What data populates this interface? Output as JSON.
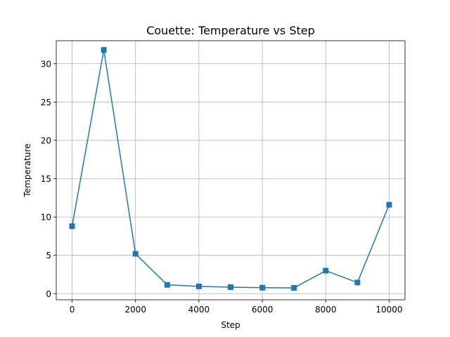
{
  "chart_data": {
    "type": "line",
    "title": "Couette: Temperature vs Step",
    "xlabel": "Step",
    "ylabel": "Temperature",
    "xlim": [
      -500,
      10500
    ],
    "ylim": [
      -0.8,
      33.0
    ],
    "xticks": [
      0,
      2000,
      4000,
      6000,
      8000,
      10000
    ],
    "xtick_labels": [
      "0",
      "2000",
      "4000",
      "6000",
      "8000",
      "10000"
    ],
    "yticks": [
      0,
      5,
      10,
      15,
      20,
      25,
      30
    ],
    "ytick_labels": [
      "0",
      "5",
      "10",
      "15",
      "20",
      "25",
      "30"
    ],
    "grid": true,
    "legend": "none",
    "marker": "square",
    "series": [
      {
        "color": "#1f77b4",
        "x": [
          0,
          1000,
          2000,
          3000,
          4000,
          5000,
          6000,
          7000,
          8000,
          9000,
          10000
        ],
        "y": [
          8.8,
          31.8,
          5.2,
          1.15,
          0.95,
          0.85,
          0.78,
          0.75,
          3.0,
          1.45,
          11.6
        ]
      }
    ]
  }
}
